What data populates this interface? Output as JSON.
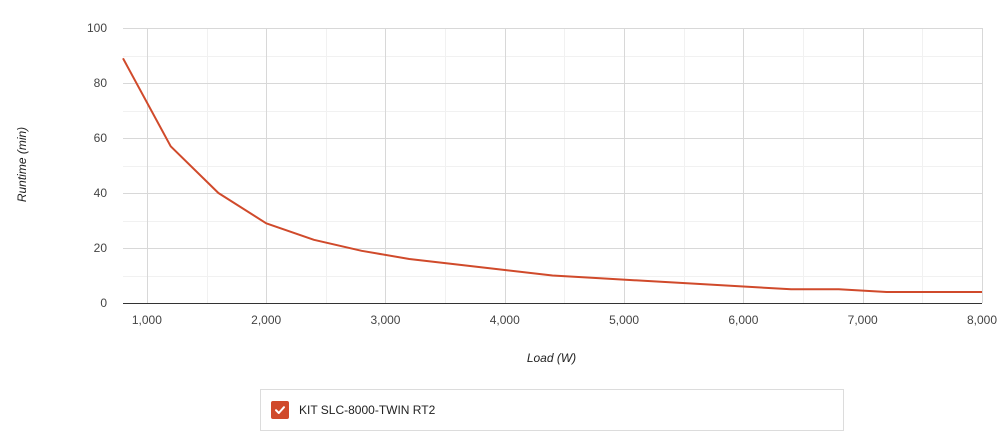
{
  "chart_data": {
    "type": "line",
    "xlabel": "Load (W)",
    "ylabel": "Runtime (min)",
    "xlim": [
      800,
      8000
    ],
    "ylim": [
      0,
      100
    ],
    "x_ticks": [
      1000,
      2000,
      3000,
      4000,
      5000,
      6000,
      7000,
      8000
    ],
    "x_tick_labels": [
      "1,000",
      "2,000",
      "3,000",
      "4,000",
      "5,000",
      "6,000",
      "7,000",
      "8,000"
    ],
    "y_ticks": [
      0,
      20,
      40,
      60,
      80,
      100
    ],
    "y_tick_labels": [
      "0",
      "20",
      "40",
      "60",
      "80",
      "100"
    ],
    "grid": true,
    "legend_position": "bottom",
    "series": [
      {
        "name": "KIT SLC-8000-TWIN RT2",
        "color": "#d04a2b",
        "checked": true,
        "x": [
          800,
          1200,
          1600,
          2000,
          2400,
          2800,
          3200,
          3600,
          4000,
          4400,
          4800,
          5200,
          5600,
          6000,
          6400,
          6800,
          7200,
          7600,
          8000
        ],
        "y": [
          89,
          57,
          40,
          29,
          23,
          19,
          16,
          14,
          12,
          10,
          9,
          8,
          7,
          6,
          5,
          5,
          4,
          4,
          4
        ]
      }
    ]
  },
  "legend": {
    "item_label": "KIT SLC-8000-TWIN RT2",
    "checkbox_icon": "check-icon"
  }
}
